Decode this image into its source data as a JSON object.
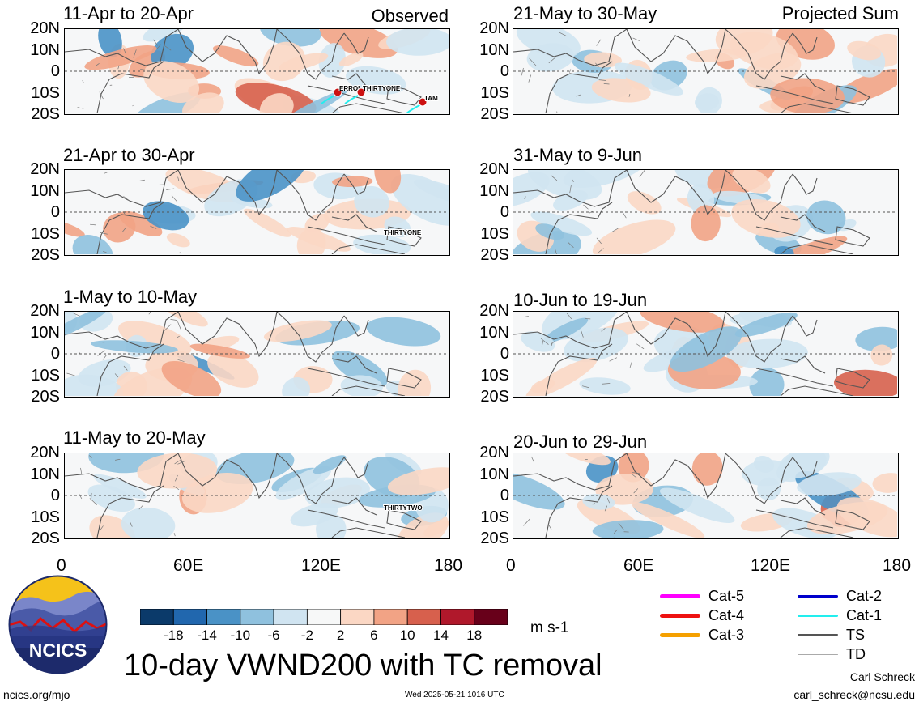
{
  "header": {
    "left_tag": "Observed",
    "right_tag": "Projected Sum"
  },
  "panels_left": [
    {
      "title": "11-Apr to 20-Apr",
      "storms": [
        "ERROL",
        "THIRTYONE",
        "TAM"
      ]
    },
    {
      "title": "21-Apr to 30-Apr",
      "storms": [
        "THIRTYONE"
      ]
    },
    {
      "title": "1-May to 10-May",
      "storms": []
    },
    {
      "title": "11-May to 20-May",
      "storms": [
        "THIRTYTWO"
      ]
    }
  ],
  "panels_right": [
    {
      "title": "21-May to 30-May"
    },
    {
      "title": "31-May to 9-Jun"
    },
    {
      "title": "10-Jun to 19-Jun"
    },
    {
      "title": "20-Jun to 29-Jun"
    }
  ],
  "axes": {
    "y_ticks": [
      "20N",
      "10N",
      "0",
      "10S",
      "20S"
    ],
    "x_ticks": [
      "0",
      "60E",
      "120E",
      "180"
    ]
  },
  "colorbar": {
    "labels": [
      "-18",
      "-14",
      "-10",
      "-6",
      "-2",
      "2",
      "6",
      "10",
      "14",
      "18"
    ],
    "colors": [
      "#0b3a6a",
      "#2167ae",
      "#4a92c6",
      "#8fc1de",
      "#d0e4f1",
      "#f7f8f8",
      "#fbd7c4",
      "#f2a385",
      "#d7604d",
      "#b0182b",
      "#68001a"
    ],
    "units": "m s-1"
  },
  "tc_legend": [
    {
      "label": "Cat-5",
      "color": "#ff00ff",
      "width": 5
    },
    {
      "label": "Cat-4",
      "color": "#ee1111",
      "width": 5
    },
    {
      "label": "Cat-3",
      "color": "#f5a000",
      "width": 5
    },
    {
      "label": "Cat-2",
      "color": "#0000cc",
      "width": 3
    },
    {
      "label": "Cat-1",
      "color": "#22eeee",
      "width": 3
    },
    {
      "label": "TS",
      "color": "#555555",
      "width": 2
    },
    {
      "label": "TD",
      "color": "#aaaaaa",
      "width": 1
    }
  ],
  "footer": {
    "main_title": "10-day VWND200 with TC removal",
    "logo_text": "NCICS",
    "website": "ncics.org/mjo",
    "timestamp": "Wed 2025-05-21 1016 UTC",
    "author": "Carl Schreck",
    "email": "carl_schreck@ncsu.edu"
  }
}
